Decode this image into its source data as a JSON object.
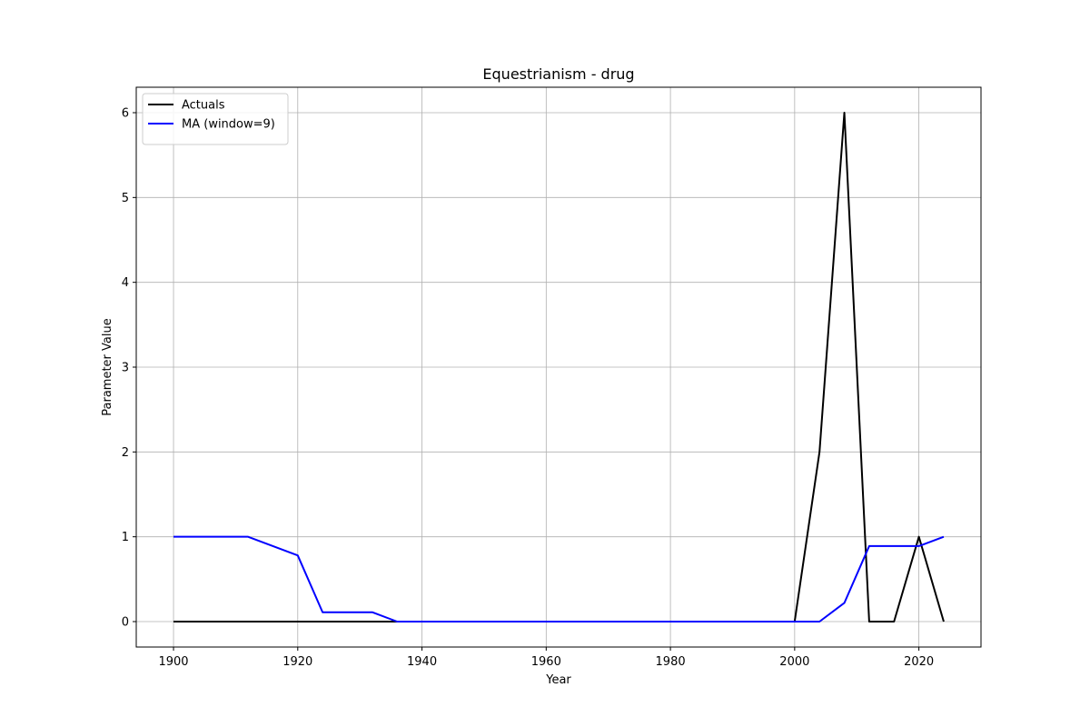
{
  "chart_data": {
    "type": "line",
    "title": "Equestrianism - drug",
    "xlabel": "Year",
    "ylabel": "Parameter Value",
    "xlim": [
      1894,
      2030
    ],
    "ylim": [
      -0.3,
      6.3
    ],
    "xticks": [
      1900,
      1920,
      1940,
      1960,
      1980,
      2000,
      2020
    ],
    "yticks": [
      0,
      1,
      2,
      3,
      4,
      5,
      6
    ],
    "grid": true,
    "legend_position": "top-left",
    "x": [
      1900,
      1904,
      1908,
      1912,
      1920,
      1924,
      1928,
      1932,
      1936,
      1948,
      1952,
      1956,
      1960,
      1964,
      1968,
      1972,
      1976,
      1980,
      1984,
      1988,
      1992,
      1996,
      2000,
      2004,
      2008,
      2012,
      2016,
      2020,
      2024
    ],
    "series": [
      {
        "name": "Actuals",
        "color": "#000000",
        "values": [
          0,
          0,
          0,
          0,
          0,
          0,
          0,
          0,
          0,
          0,
          0,
          0,
          0,
          0,
          0,
          0,
          0,
          0,
          0,
          0,
          0,
          0,
          0,
          2,
          6,
          0,
          0,
          1,
          0
        ]
      },
      {
        "name": "MA (window=9)",
        "color": "#0000ff",
        "values": [
          1,
          1,
          1,
          1,
          0.78,
          0.11,
          0.11,
          0.11,
          0,
          0,
          0,
          0,
          0,
          0,
          0,
          0,
          0,
          0,
          0,
          0,
          0,
          0,
          0,
          0,
          0.22,
          0.89,
          0.89,
          0.89,
          1
        ]
      }
    ]
  }
}
